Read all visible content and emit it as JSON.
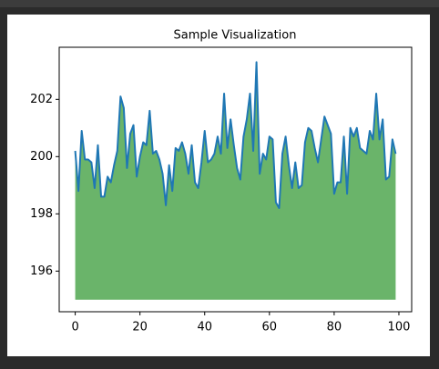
{
  "chart_data": {
    "type": "area",
    "title": "Sample Visualization",
    "x": [
      0,
      1,
      2,
      3,
      4,
      5,
      6,
      7,
      8,
      9,
      10,
      11,
      12,
      13,
      14,
      15,
      16,
      17,
      18,
      19,
      20,
      21,
      22,
      23,
      24,
      25,
      26,
      27,
      28,
      29,
      30,
      31,
      32,
      33,
      34,
      35,
      36,
      37,
      38,
      39,
      40,
      41,
      42,
      43,
      44,
      45,
      46,
      47,
      48,
      49,
      50,
      51,
      52,
      53,
      54,
      55,
      56,
      57,
      58,
      59,
      60,
      61,
      62,
      63,
      64,
      65,
      66,
      67,
      68,
      69,
      70,
      71,
      72,
      73,
      74,
      75,
      76,
      77,
      78,
      79,
      80,
      81,
      82,
      83,
      84,
      85,
      86,
      87,
      88,
      89,
      90,
      91,
      92,
      93,
      94,
      95,
      96,
      97,
      98,
      99
    ],
    "values": [
      200.2,
      198.8,
      200.9,
      199.9,
      199.9,
      199.8,
      198.9,
      200.4,
      198.6,
      198.6,
      199.3,
      199.1,
      199.7,
      200.2,
      202.1,
      201.7,
      199.6,
      200.8,
      201.1,
      199.3,
      200.0,
      200.5,
      200.4,
      201.6,
      200.1,
      200.2,
      199.9,
      199.4,
      198.3,
      199.7,
      198.8,
      200.3,
      200.2,
      200.5,
      200.1,
      199.4,
      200.4,
      199.1,
      198.9,
      199.8,
      200.9,
      199.8,
      199.9,
      200.1,
      200.7,
      200.1,
      202.2,
      200.3,
      201.3,
      200.4,
      199.6,
      199.2,
      200.7,
      201.3,
      202.2,
      200.2,
      203.3,
      199.4,
      200.1,
      199.9,
      200.7,
      200.6,
      198.4,
      198.2,
      200.1,
      200.7,
      199.7,
      198.9,
      199.8,
      198.9,
      199.0,
      200.5,
      201.0,
      200.9,
      200.3,
      199.8,
      200.6,
      201.4,
      201.1,
      200.8,
      198.7,
      199.1,
      199.1,
      200.7,
      198.7,
      201.0,
      200.7,
      201.0,
      200.3,
      200.2,
      200.1,
      200.9,
      200.6,
      202.2,
      200.6,
      201.3,
      199.2,
      199.3,
      200.6,
      200.1
    ],
    "fill_to": 195,
    "line_color": "#1f77b4",
    "fill_color": "#6ab46a",
    "xlim": [
      -4.95,
      103.95
    ],
    "xticks": [
      0,
      20,
      40,
      60,
      80,
      100
    ],
    "ylim": [
      194.58,
      203.82
    ],
    "yticks": [
      196,
      198,
      200,
      202
    ],
    "grid": false
  }
}
